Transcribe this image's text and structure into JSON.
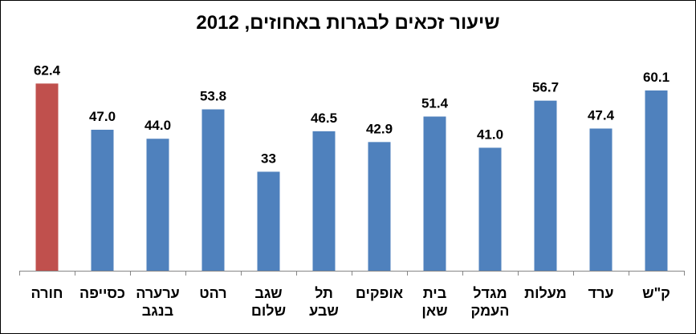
{
  "chart_data": {
    "type": "bar",
    "title": "שיעור זכאים לבגרות באחוזים, 2012",
    "xlabel": "",
    "ylabel": "",
    "ylim": [
      0,
      70
    ],
    "grid": false,
    "legend": "none",
    "categories": [
      "חורה",
      "כסייפה",
      "ערערה בנגב",
      "רהט",
      "שגב שלום",
      "תל שבע",
      "אופקים",
      "בית שאן",
      "מגדל העמק",
      "מעלות",
      "ערד",
      "ק\"ש"
    ],
    "category_lines": [
      [
        "חורה"
      ],
      [
        "כסייפה"
      ],
      [
        "ערערה",
        "בנגב"
      ],
      [
        "רהט"
      ],
      [
        "שגב",
        "שלום"
      ],
      [
        "תל",
        "שבע"
      ],
      [
        "אופקים"
      ],
      [
        "בית",
        "שאן"
      ],
      [
        "מגדל",
        "העמק"
      ],
      [
        "מעלות"
      ],
      [
        "ערד"
      ],
      [
        "ק\"ש"
      ]
    ],
    "values": [
      62.4,
      47.0,
      44.0,
      53.8,
      33,
      46.5,
      42.9,
      51.4,
      41.0,
      56.7,
      47.4,
      60.1
    ],
    "value_labels": [
      "62.4",
      "47.0",
      "44.0",
      "53.8",
      "33",
      "46.5",
      "42.9",
      "51.4",
      "41.0",
      "56.7",
      "47.4",
      "60.1"
    ],
    "bar_colors": [
      "#C0504D",
      "#4F81BD",
      "#4F81BD",
      "#4F81BD",
      "#4F81BD",
      "#4F81BD",
      "#4F81BD",
      "#4F81BD",
      "#4F81BD",
      "#4F81BD",
      "#4F81BD",
      "#4F81BD"
    ],
    "axis_color": "#868686"
  }
}
